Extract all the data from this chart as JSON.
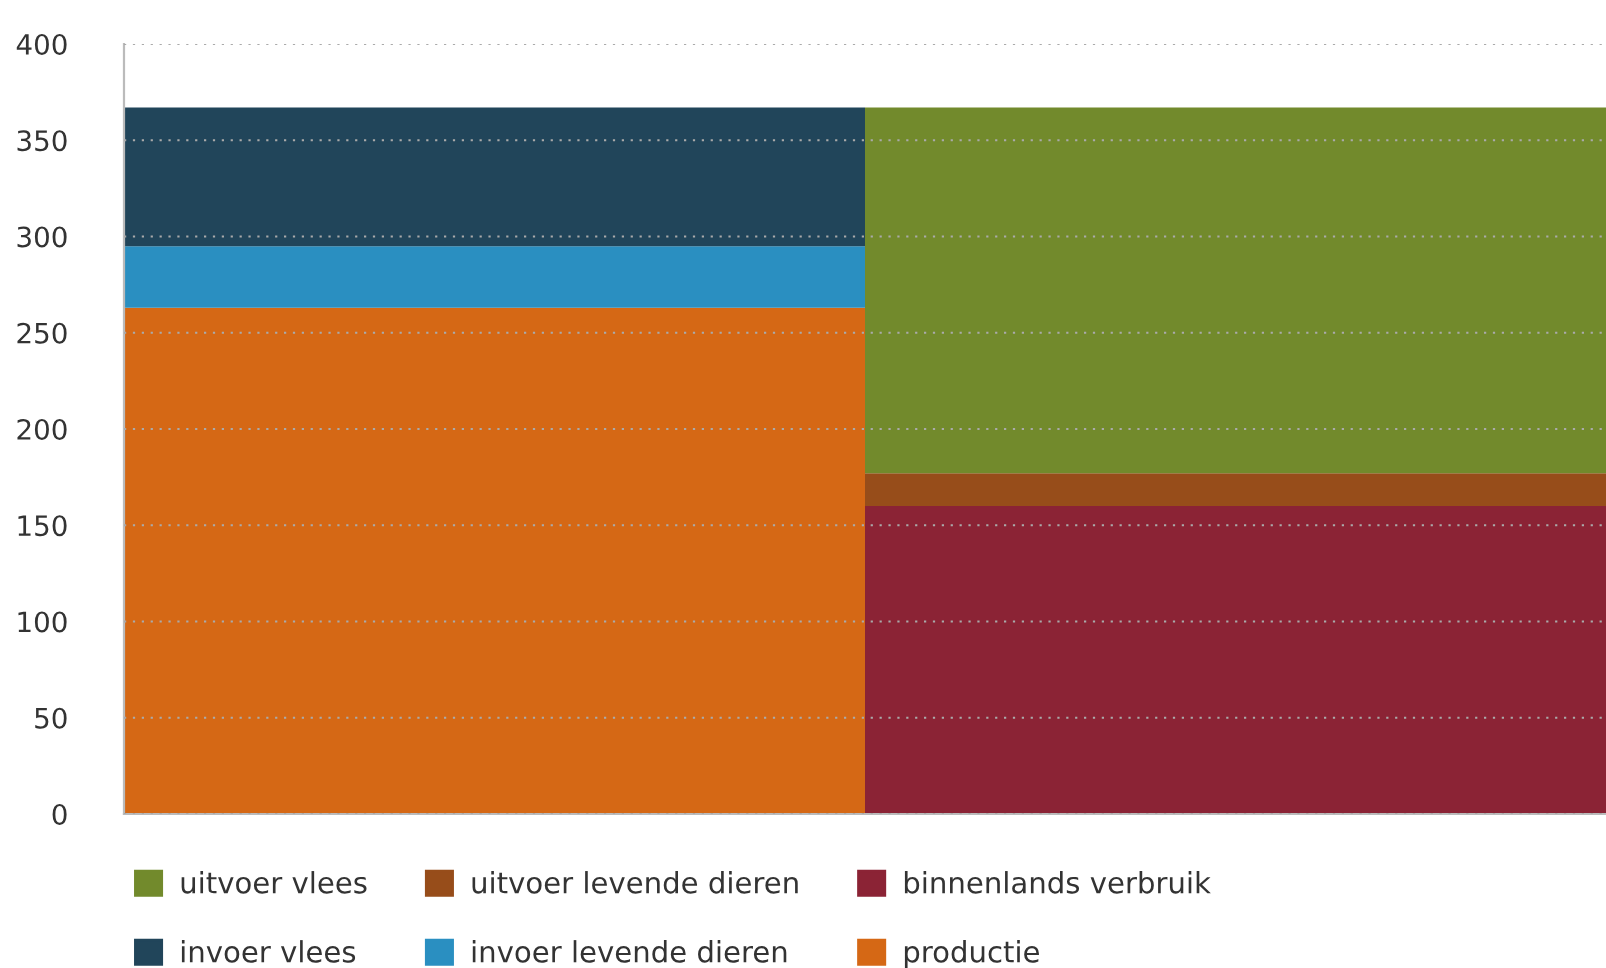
{
  "chart_data": {
    "type": "bar",
    "stacked": true,
    "categories": [
      null,
      null
    ],
    "series": [
      {
        "name": "productie",
        "color": "#d56815",
        "values": [
          263,
          null
        ]
      },
      {
        "name": "invoer levende dieren",
        "color": "#2a8fc1",
        "values": [
          32,
          null
        ]
      },
      {
        "name": "invoer vlees",
        "color": "#21455a",
        "values": [
          72,
          null
        ]
      },
      {
        "name": "binnenlands verbruik",
        "color": "#8b2335",
        "values": [
          null,
          160
        ]
      },
      {
        "name": "uitvoer levende dieren",
        "color": "#974d1a",
        "values": [
          null,
          17
        ]
      },
      {
        "name": "uitvoer vlees",
        "color": "#728a2c",
        "values": [
          null,
          190
        ]
      }
    ],
    "ylim": [
      0,
      400
    ],
    "yticks": [
      0,
      50,
      100,
      150,
      200,
      250,
      300,
      350,
      400
    ],
    "grid": "y",
    "legend": "bottom",
    "tick_labels": "y"
  }
}
